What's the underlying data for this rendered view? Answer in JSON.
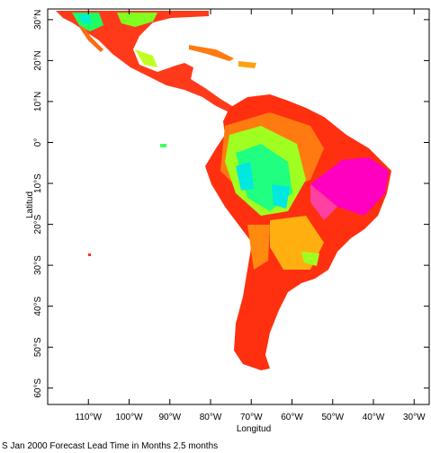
{
  "map": {
    "xlabel": "Longitud",
    "ylabel": "Latitud",
    "caption": "S Jan 2000 Forecast Lead Time in Months 2.5 months",
    "xlim": [
      -120,
      -26.3
    ],
    "ylim": [
      -64,
      32.6
    ],
    "xticks": [
      {
        "value": -110,
        "label": "110°W"
      },
      {
        "value": -100,
        "label": "100°W"
      },
      {
        "value": -90,
        "label": "90°W"
      },
      {
        "value": -80,
        "label": "80°W"
      },
      {
        "value": -70,
        "label": "70°W"
      },
      {
        "value": -60,
        "label": "60°W"
      },
      {
        "value": -50,
        "label": "50°W"
      },
      {
        "value": -40,
        "label": "40°W"
      },
      {
        "value": -30,
        "label": "30°W"
      }
    ],
    "yticks": [
      {
        "value": 30,
        "label": "30°N"
      },
      {
        "value": 20,
        "label": "20°N"
      },
      {
        "value": 10,
        "label": "10°N"
      },
      {
        "value": 0,
        "label": "0°"
      },
      {
        "value": -10,
        "label": "10°S"
      },
      {
        "value": -20,
        "label": "20°S"
      },
      {
        "value": -30,
        "label": "30°S"
      },
      {
        "value": -40,
        "label": "40°S"
      },
      {
        "value": -50,
        "label": "50°S"
      },
      {
        "value": -60,
        "label": "60°S"
      }
    ]
  }
}
